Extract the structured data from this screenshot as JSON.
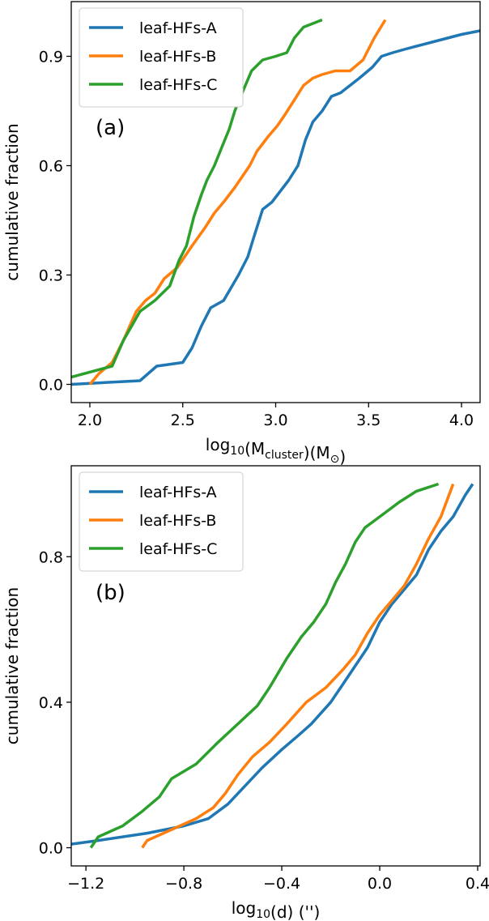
{
  "chart_data": [
    {
      "type": "line",
      "panel_label": "(a)",
      "xlabel": {
        "base": "log",
        "sub": "10",
        "mid": "(M",
        "sub2": "cluster",
        "tail": ")(M",
        "sym": "⊙",
        "end": ")"
      },
      "ylabel": "cumulative fraction",
      "xlim": [
        1.9,
        4.1
      ],
      "ylim": [
        -0.05,
        1.05
      ],
      "xticks": [
        2.0,
        2.5,
        3.0,
        3.5,
        4.0
      ],
      "xtick_labels": [
        "2.0",
        "2.5",
        "3.0",
        "3.5",
        "4.0"
      ],
      "yticks": [
        0.0,
        0.3,
        0.6,
        0.9
      ],
      "ytick_labels": [
        "0.0",
        "0.3",
        "0.6",
        "0.9"
      ],
      "legend_position": "top-left",
      "series": [
        {
          "name": "leaf-HFs-A",
          "color": "#1f77b4",
          "x": [
            1.9,
            2.27,
            2.36,
            2.5,
            2.55,
            2.6,
            2.65,
            2.72,
            2.8,
            2.85,
            2.88,
            2.93,
            2.98,
            3.01,
            3.07,
            3.12,
            3.16,
            3.2,
            3.25,
            3.3,
            3.35,
            3.4,
            3.45,
            3.52,
            3.57,
            3.63,
            3.7,
            3.85,
            4.0,
            4.1
          ],
          "y": [
            0.0,
            0.01,
            0.05,
            0.06,
            0.1,
            0.16,
            0.21,
            0.23,
            0.3,
            0.35,
            0.4,
            0.48,
            0.5,
            0.52,
            0.56,
            0.6,
            0.67,
            0.72,
            0.75,
            0.79,
            0.8,
            0.82,
            0.84,
            0.87,
            0.9,
            0.91,
            0.92,
            0.94,
            0.96,
            0.97
          ]
        },
        {
          "name": "leaf-HFs-B",
          "color": "#ff7f0e",
          "x": [
            2.0,
            2.05,
            2.12,
            2.18,
            2.25,
            2.3,
            2.35,
            2.4,
            2.47,
            2.55,
            2.62,
            2.67,
            2.72,
            2.78,
            2.82,
            2.86,
            2.9,
            2.96,
            3.01,
            3.05,
            3.1,
            3.15,
            3.2,
            3.25,
            3.32,
            3.4,
            3.47,
            3.53,
            3.59
          ],
          "y": [
            0.0,
            0.03,
            0.06,
            0.12,
            0.2,
            0.23,
            0.25,
            0.29,
            0.32,
            0.38,
            0.43,
            0.47,
            0.5,
            0.54,
            0.57,
            0.6,
            0.64,
            0.68,
            0.71,
            0.74,
            0.78,
            0.82,
            0.84,
            0.85,
            0.86,
            0.86,
            0.89,
            0.95,
            1.0
          ]
        },
        {
          "name": "leaf-HFs-C",
          "color": "#2ca02c",
          "x": [
            1.9,
            2.12,
            2.18,
            2.27,
            2.35,
            2.43,
            2.48,
            2.52,
            2.56,
            2.6,
            2.63,
            2.67,
            2.71,
            2.75,
            2.78,
            2.82,
            2.87,
            2.93,
            3.0,
            3.06,
            3.1,
            3.15,
            3.2,
            3.25
          ],
          "y": [
            0.02,
            0.05,
            0.12,
            0.2,
            0.23,
            0.27,
            0.34,
            0.38,
            0.46,
            0.52,
            0.56,
            0.6,
            0.65,
            0.7,
            0.75,
            0.8,
            0.86,
            0.89,
            0.9,
            0.91,
            0.95,
            0.98,
            0.99,
            1.0
          ]
        }
      ]
    },
    {
      "type": "line",
      "panel_label": "(b)",
      "xlabel": {
        "base": "log",
        "sub": "10",
        "tail": "(d) ('')"
      },
      "ylabel": "cumulative fraction",
      "xlim": [
        -1.26,
        0.41
      ],
      "ylim": [
        -0.05,
        1.05
      ],
      "xticks": [
        -1.2,
        -0.8,
        -0.4,
        0.0,
        0.4
      ],
      "xtick_labels": [
        "−1.2",
        "−0.8",
        "−0.4",
        "0.0",
        "0.4"
      ],
      "yticks": [
        0.0,
        0.4,
        0.8
      ],
      "ytick_labels": [
        "0.0",
        "0.4",
        "0.8"
      ],
      "legend_position": "top-left",
      "series": [
        {
          "name": "leaf-HFs-A",
          "color": "#1f77b4",
          "x": [
            -1.26,
            -1.15,
            -0.95,
            -0.8,
            -0.7,
            -0.62,
            -0.55,
            -0.48,
            -0.4,
            -0.33,
            -0.28,
            -0.2,
            -0.15,
            -0.1,
            -0.05,
            0.0,
            0.05,
            0.1,
            0.15,
            0.2,
            0.25,
            0.3,
            0.35,
            0.38
          ],
          "y": [
            0.01,
            0.02,
            0.04,
            0.06,
            0.08,
            0.12,
            0.17,
            0.22,
            0.27,
            0.31,
            0.34,
            0.4,
            0.45,
            0.5,
            0.55,
            0.62,
            0.67,
            0.71,
            0.75,
            0.82,
            0.87,
            0.91,
            0.97,
            1.0
          ]
        },
        {
          "name": "leaf-HFs-B",
          "color": "#ff7f0e",
          "x": [
            -0.97,
            -0.95,
            -0.85,
            -0.75,
            -0.68,
            -0.63,
            -0.58,
            -0.52,
            -0.45,
            -0.38,
            -0.3,
            -0.22,
            -0.15,
            -0.1,
            -0.05,
            0.0,
            0.05,
            0.1,
            0.15,
            0.2,
            0.25,
            0.3
          ],
          "y": [
            0.0,
            0.02,
            0.05,
            0.08,
            0.11,
            0.15,
            0.2,
            0.25,
            0.29,
            0.34,
            0.4,
            0.44,
            0.49,
            0.53,
            0.59,
            0.64,
            0.68,
            0.72,
            0.78,
            0.85,
            0.91,
            1.0
          ]
        },
        {
          "name": "leaf-HFs-C",
          "color": "#2ca02c",
          "x": [
            -1.18,
            -1.15,
            -1.05,
            -0.97,
            -0.9,
            -0.85,
            -0.75,
            -0.66,
            -0.58,
            -0.5,
            -0.45,
            -0.38,
            -0.32,
            -0.27,
            -0.22,
            -0.18,
            -0.14,
            -0.1,
            -0.06,
            -0.02,
            0.02,
            0.08,
            0.15,
            0.24
          ],
          "y": [
            0.0,
            0.03,
            0.06,
            0.1,
            0.14,
            0.19,
            0.23,
            0.29,
            0.34,
            0.39,
            0.44,
            0.52,
            0.58,
            0.62,
            0.67,
            0.73,
            0.78,
            0.84,
            0.88,
            0.9,
            0.92,
            0.95,
            0.98,
            1.0
          ]
        }
      ]
    }
  ]
}
